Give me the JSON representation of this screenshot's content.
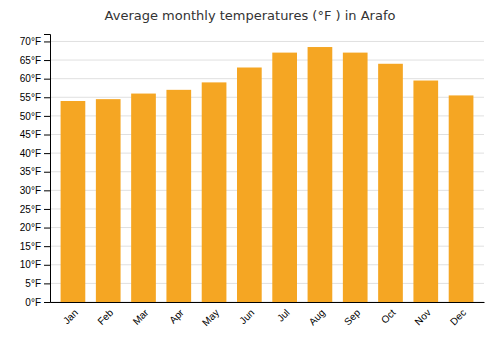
{
  "chart_data": {
    "type": "bar",
    "title": "Average monthly temperatures (°F ) in Arafo",
    "categories": [
      "Jan",
      "Feb",
      "Mar",
      "Apr",
      "May",
      "Jun",
      "Jul",
      "Aug",
      "Sep",
      "Oct",
      "Nov",
      "Dec"
    ],
    "values": [
      54,
      54.5,
      56,
      57,
      59,
      63,
      67,
      68.5,
      67,
      64,
      59.5,
      55.5
    ],
    "color": "#F5A623",
    "ylim": [
      0,
      72
    ],
    "yticks": [
      {
        "value": 0,
        "label": "0°F"
      },
      {
        "value": 5,
        "label": "5°F"
      },
      {
        "value": 10,
        "label": "10°F"
      },
      {
        "value": 15,
        "label": "15°F"
      },
      {
        "value": 20,
        "label": "20°F"
      },
      {
        "value": 25,
        "label": "25°F"
      },
      {
        "value": 30,
        "label": "30°F"
      },
      {
        "value": 35,
        "label": "35°F"
      },
      {
        "value": 40,
        "label": "40°F"
      },
      {
        "value": 45,
        "label": "45°F"
      },
      {
        "value": 50,
        "label": "50°F"
      },
      {
        "value": 55,
        "label": "55°F"
      },
      {
        "value": 60,
        "label": "60°F"
      },
      {
        "value": 65,
        "label": "65°F"
      },
      {
        "value": 70,
        "label": "70°F"
      }
    ],
    "grid": true
  }
}
